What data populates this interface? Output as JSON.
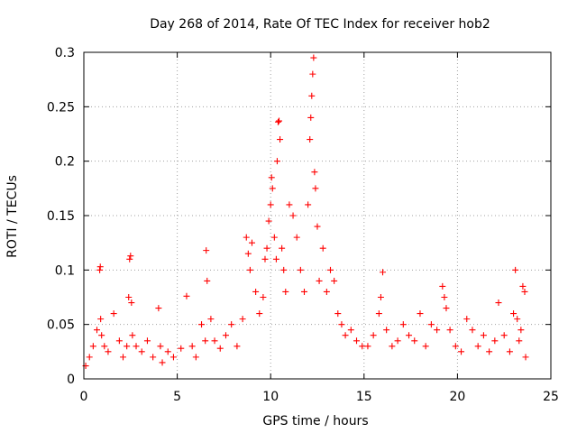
{
  "chart_data": {
    "type": "scatter",
    "title": "Day 268 of 2014, Rate Of TEC Index for receiver hob2",
    "xlabel": "GPS time / hours",
    "ylabel": "ROTI / TECUs",
    "xlim": [
      0,
      25
    ],
    "ylim": [
      0,
      0.3
    ],
    "xticks": [
      0,
      5,
      10,
      15,
      20,
      25
    ],
    "xtick_labels": [
      "0",
      "5",
      "10",
      "15",
      "20",
      "25"
    ],
    "yticks": [
      0,
      0.05,
      0.1,
      0.15,
      0.2,
      0.25,
      0.3
    ],
    "ytick_labels": [
      "0",
      "0.05",
      "0.1",
      "0.15",
      "0.2",
      "0.25",
      "0.3"
    ],
    "grid": true,
    "marker": "+",
    "color": "#ff0000",
    "series": [
      {
        "x": [
          0.1,
          0.3,
          0.5,
          0.7,
          0.85,
          0.88,
          0.9,
          0.95,
          1.1,
          1.3,
          1.6,
          1.9,
          2.1,
          2.3,
          2.4,
          2.45,
          2.5,
          2.55,
          2.6,
          2.8,
          3.1,
          3.4,
          3.7,
          4.0,
          4.1,
          4.2,
          4.5,
          4.8,
          5.2,
          5.5,
          5.8,
          6.0,
          6.3,
          6.5,
          6.55,
          6.6,
          6.8,
          7.0,
          7.3,
          7.6,
          7.9,
          8.2,
          8.5,
          8.7,
          8.8,
          8.9,
          9.0,
          9.2,
          9.4,
          9.6,
          9.7,
          9.8,
          9.9,
          10.0,
          10.05,
          10.1,
          10.2,
          10.3,
          10.35,
          10.4,
          10.45,
          10.5,
          10.6,
          10.7,
          10.8,
          11.0,
          11.2,
          11.4,
          11.6,
          11.8,
          12.0,
          12.1,
          12.15,
          12.2,
          12.25,
          12.3,
          12.35,
          12.4,
          12.5,
          12.6,
          12.8,
          13.0,
          13.2,
          13.4,
          13.6,
          13.8,
          14.0,
          14.3,
          14.6,
          14.9,
          15.2,
          15.5,
          15.8,
          15.9,
          16.0,
          16.2,
          16.5,
          16.8,
          17.1,
          17.4,
          17.7,
          18.0,
          18.3,
          18.6,
          18.9,
          19.2,
          19.3,
          19.4,
          19.6,
          19.9,
          20.2,
          20.5,
          20.8,
          21.1,
          21.4,
          21.7,
          22.0,
          22.2,
          22.5,
          22.8,
          23.0,
          23.1,
          23.2,
          23.3,
          23.4,
          23.5,
          23.6,
          23.65
        ],
        "y": [
          0.012,
          0.02,
          0.03,
          0.045,
          0.1,
          0.103,
          0.055,
          0.04,
          0.03,
          0.025,
          0.06,
          0.035,
          0.02,
          0.03,
          0.075,
          0.11,
          0.113,
          0.07,
          0.04,
          0.03,
          0.025,
          0.035,
          0.02,
          0.065,
          0.03,
          0.015,
          0.025,
          0.02,
          0.028,
          0.076,
          0.03,
          0.02,
          0.05,
          0.035,
          0.118,
          0.09,
          0.055,
          0.035,
          0.028,
          0.04,
          0.05,
          0.03,
          0.055,
          0.13,
          0.115,
          0.1,
          0.125,
          0.08,
          0.06,
          0.075,
          0.11,
          0.12,
          0.145,
          0.16,
          0.185,
          0.175,
          0.13,
          0.11,
          0.2,
          0.236,
          0.237,
          0.22,
          0.12,
          0.1,
          0.08,
          0.16,
          0.15,
          0.13,
          0.1,
          0.08,
          0.16,
          0.22,
          0.24,
          0.26,
          0.28,
          0.295,
          0.19,
          0.175,
          0.14,
          0.09,
          0.12,
          0.08,
          0.1,
          0.09,
          0.06,
          0.05,
          0.04,
          0.045,
          0.035,
          0.03,
          0.03,
          0.04,
          0.06,
          0.075,
          0.098,
          0.045,
          0.03,
          0.035,
          0.05,
          0.04,
          0.035,
          0.06,
          0.03,
          0.05,
          0.045,
          0.085,
          0.075,
          0.065,
          0.045,
          0.03,
          0.025,
          0.055,
          0.045,
          0.03,
          0.04,
          0.025,
          0.035,
          0.07,
          0.04,
          0.025,
          0.06,
          0.1,
          0.055,
          0.035,
          0.045,
          0.085,
          0.08,
          0.02
        ]
      }
    ]
  }
}
